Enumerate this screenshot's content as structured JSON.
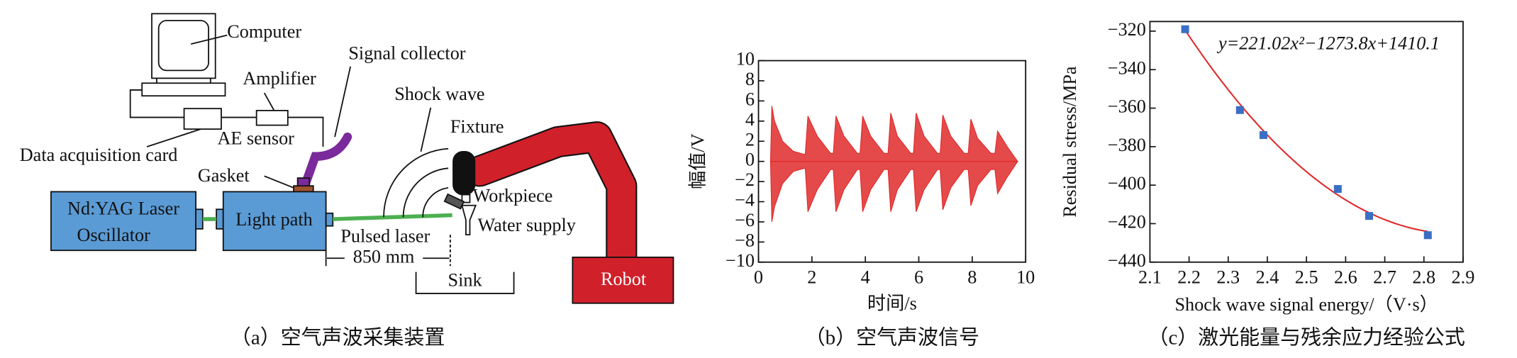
{
  "diagram": {
    "labels": {
      "computer": "Computer",
      "signal_collector": "Signal collector",
      "amplifier": "Amplifier",
      "data_acquisition_card": "Data acquisition card",
      "ae_sensor": "AE sensor",
      "shock_wave": "Shock wave",
      "fixture": "Fixture",
      "gasket": "Gasket",
      "laser_line1": "Nd:YAG Laser",
      "laser_line2": "Oscillator",
      "light_path": "Light path",
      "workpiece": "Workpiece",
      "water_supply": "Water supply",
      "pulsed_laser": "Pulsed laser",
      "distance": "850 mm",
      "sink": "Sink",
      "robot": "Robot"
    },
    "caption": "（a）空气声波采集装置"
  },
  "chart_data": [
    {
      "type": "band",
      "caption": "（b）空气声波信号",
      "x_label": "时间/s",
      "y_label": "幅值/V",
      "color": "#e02a2a",
      "x": [
        0.45,
        0.5,
        0.6,
        0.9,
        1.3,
        1.7,
        1.75,
        1.85,
        2.2,
        2.7,
        2.8,
        2.9,
        3.2,
        3.7,
        3.8,
        3.9,
        4.2,
        4.7,
        4.85,
        4.95,
        5.2,
        5.7,
        5.8,
        5.9,
        6.2,
        6.7,
        6.8,
        6.9,
        7.2,
        7.7,
        7.85,
        7.95,
        8.2,
        8.7,
        8.85,
        8.95,
        9.3,
        9.7
      ],
      "high": [
        0,
        5.5,
        4,
        2,
        1,
        0.7,
        0.7,
        4.5,
        2.5,
        0.8,
        0.8,
        4.5,
        2.5,
        0.8,
        0.8,
        4.5,
        2.5,
        0.8,
        0.8,
        4.8,
        2.5,
        0.8,
        0.8,
        4.8,
        2.5,
        0.8,
        0.8,
        4.6,
        2.5,
        0.8,
        0.8,
        4.2,
        2.3,
        0.8,
        0.8,
        3,
        1.5,
        0
      ],
      "low": [
        0,
        -6,
        -4.5,
        -2.2,
        -1,
        -0.7,
        -0.7,
        -5,
        -2.8,
        -0.8,
        -0.8,
        -5,
        -2.8,
        -0.8,
        -0.8,
        -5,
        -2.8,
        -0.8,
        -0.8,
        -5,
        -2.8,
        -0.8,
        -0.8,
        -5,
        -2.8,
        -0.8,
        -0.8,
        -4.8,
        -2.6,
        -0.8,
        -0.8,
        -4.4,
        -2.4,
        -0.8,
        -0.8,
        -3.2,
        -1.6,
        0
      ],
      "xlim": [
        0,
        10
      ],
      "xticks": [
        0,
        2,
        4,
        6,
        8,
        10
      ],
      "ylim": [
        -10,
        10
      ],
      "yticks": [
        {
          "value": -10,
          "label": "−10"
        },
        {
          "value": -8,
          "label": "−8"
        },
        {
          "value": -6,
          "label": "−6"
        },
        {
          "value": -4,
          "label": "−4"
        },
        {
          "value": -2,
          "label": "−2"
        },
        0,
        2,
        4,
        6,
        8,
        10
      ]
    },
    {
      "type": "scatter",
      "caption": "（c）激光能量与残余应力经验公式",
      "x_label": "Shock wave signal energy/（V·s）",
      "y_label": "Residual stress/MPa",
      "color": "#3a6fc4",
      "fit_color": "#e02a2a",
      "x": [
        2.19,
        2.33,
        2.39,
        2.58,
        2.66,
        2.81
      ],
      "values": [
        -319,
        -361,
        -374,
        -402,
        -416,
        -426
      ],
      "equation": "y=221.02x²−1273.8x+1410.1",
      "fit": [
        221.02,
        -1273.8,
        1410.1
      ],
      "xlim": [
        2.1,
        2.9
      ],
      "xticks": [
        2.1,
        2.2,
        2.3,
        2.4,
        2.5,
        2.6,
        2.7,
        2.8,
        2.9
      ],
      "ylim": [
        -440,
        -315
      ],
      "yticks": [
        {
          "value": -440,
          "label": "−440"
        },
        {
          "value": -420,
          "label": "−420"
        },
        {
          "value": -400,
          "label": "−400"
        },
        {
          "value": -380,
          "label": "−380"
        },
        {
          "value": -360,
          "label": "−360"
        },
        {
          "value": -340,
          "label": "−340"
        },
        {
          "value": -320,
          "label": "−320"
        }
      ]
    }
  ]
}
